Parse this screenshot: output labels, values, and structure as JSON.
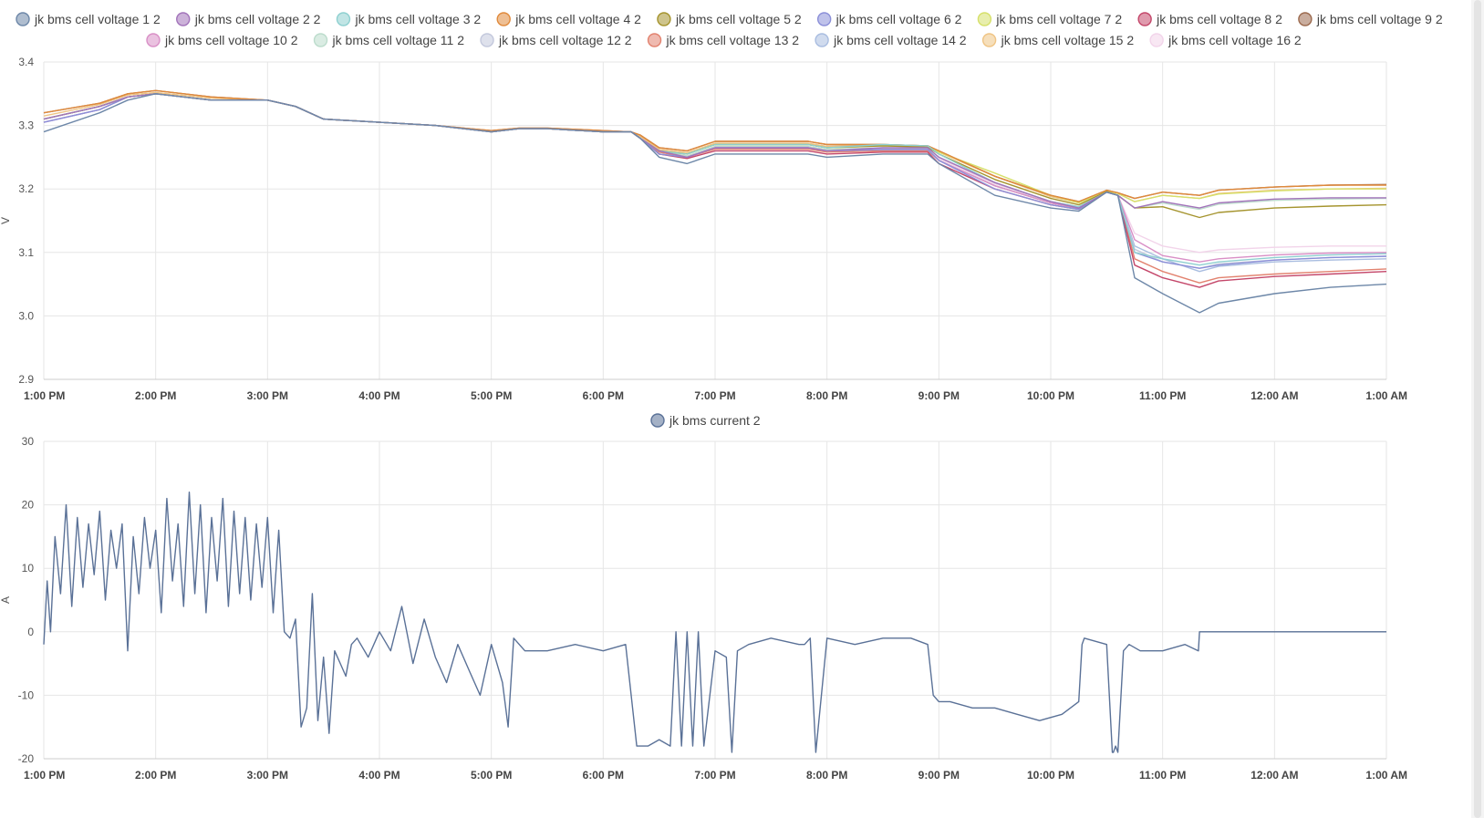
{
  "chart_data": [
    {
      "type": "line",
      "title": "",
      "xlabel": "",
      "ylabel": "V",
      "ylim": [
        2.9,
        3.4
      ],
      "yticks": [
        "2.9",
        "3.0",
        "3.1",
        "3.2",
        "3.3",
        "3.4"
      ],
      "xlim": [
        13,
        25
      ],
      "xticks": [
        "1:00 PM",
        "2:00 PM",
        "3:00 PM",
        "4:00 PM",
        "5:00 PM",
        "6:00 PM",
        "7:00 PM",
        "8:00 PM",
        "9:00 PM",
        "10:00 PM",
        "11:00 PM",
        "12:00 AM",
        "1:00 AM"
      ],
      "grid": true,
      "legend_position": "top",
      "x": [
        13.0,
        13.5,
        13.75,
        14.0,
        14.5,
        15.0,
        15.25,
        15.5,
        16.0,
        16.5,
        17.0,
        17.25,
        17.5,
        18.0,
        18.25,
        18.33,
        18.5,
        18.75,
        19.0,
        19.25,
        19.5,
        19.83,
        20.0,
        20.5,
        20.9,
        21.0,
        21.5,
        22.0,
        22.25,
        22.5,
        22.6,
        22.75,
        23.0,
        23.33,
        23.5,
        24.0,
        24.5,
        25.0
      ],
      "series": [
        {
          "name": "jk bms cell voltage 1 2",
          "color": "#6d87a8",
          "values": [
            3.29,
            3.32,
            3.34,
            3.35,
            3.34,
            3.34,
            3.33,
            3.31,
            3.305,
            3.3,
            3.29,
            3.295,
            3.295,
            3.29,
            3.29,
            3.28,
            3.25,
            3.24,
            3.255,
            3.255,
            3.255,
            3.255,
            3.25,
            3.255,
            3.255,
            3.24,
            3.19,
            3.17,
            3.165,
            3.195,
            3.19,
            3.06,
            3.035,
            3.005,
            3.02,
            3.035,
            3.045,
            3.05
          ]
        },
        {
          "name": "jk bms cell voltage 2 2",
          "color": "#a273ba",
          "values": [
            3.31,
            3.33,
            3.345,
            3.35,
            3.34,
            3.34,
            3.33,
            3.31,
            3.305,
            3.3,
            3.29,
            3.295,
            3.295,
            3.29,
            3.29,
            3.28,
            3.26,
            3.25,
            3.265,
            3.265,
            3.265,
            3.265,
            3.26,
            3.265,
            3.265,
            3.25,
            3.21,
            3.18,
            3.17,
            3.195,
            3.19,
            3.17,
            3.18,
            3.17,
            3.178,
            3.184,
            3.186,
            3.186
          ]
        },
        {
          "name": "jk bms cell voltage 3 2",
          "color": "#8ed0d0",
          "values": [
            3.31,
            3.33,
            3.345,
            3.35,
            3.34,
            3.34,
            3.33,
            3.31,
            3.305,
            3.3,
            3.29,
            3.295,
            3.295,
            3.29,
            3.29,
            3.28,
            3.26,
            3.255,
            3.27,
            3.27,
            3.27,
            3.27,
            3.265,
            3.27,
            3.268,
            3.255,
            3.21,
            3.18,
            3.172,
            3.195,
            3.19,
            3.1,
            3.09,
            3.08,
            3.085,
            3.092,
            3.096,
            3.098
          ]
        },
        {
          "name": "jk bms cell voltage 4 2",
          "color": "#e08a3c",
          "values": [
            3.32,
            3.335,
            3.35,
            3.355,
            3.345,
            3.34,
            3.33,
            3.31,
            3.305,
            3.3,
            3.292,
            3.296,
            3.296,
            3.292,
            3.29,
            3.285,
            3.265,
            3.26,
            3.275,
            3.275,
            3.275,
            3.275,
            3.27,
            3.27,
            3.268,
            3.26,
            3.22,
            3.19,
            3.18,
            3.198,
            3.194,
            3.185,
            3.195,
            3.19,
            3.198,
            3.203,
            3.206,
            3.206
          ]
        },
        {
          "name": "jk bms cell voltage 5 2",
          "color": "#a5942e",
          "values": [
            3.31,
            3.33,
            3.345,
            3.35,
            3.34,
            3.34,
            3.33,
            3.31,
            3.305,
            3.3,
            3.29,
            3.295,
            3.295,
            3.29,
            3.29,
            3.28,
            3.26,
            3.255,
            3.27,
            3.27,
            3.27,
            3.27,
            3.265,
            3.268,
            3.266,
            3.255,
            3.215,
            3.185,
            3.175,
            3.196,
            3.19,
            3.17,
            3.172,
            3.155,
            3.163,
            3.17,
            3.173,
            3.175
          ]
        },
        {
          "name": "jk bms cell voltage 6 2",
          "color": "#8b8fd8",
          "values": [
            3.305,
            3.325,
            3.345,
            3.35,
            3.34,
            3.34,
            3.33,
            3.31,
            3.305,
            3.3,
            3.29,
            3.295,
            3.295,
            3.29,
            3.29,
            3.28,
            3.255,
            3.25,
            3.265,
            3.265,
            3.265,
            3.265,
            3.26,
            3.262,
            3.262,
            3.245,
            3.2,
            3.175,
            3.168,
            3.195,
            3.19,
            3.1,
            3.085,
            3.075,
            3.08,
            3.088,
            3.092,
            3.094
          ]
        },
        {
          "name": "jk bms cell voltage 7 2",
          "color": "#d6e06a",
          "values": [
            3.31,
            3.33,
            3.345,
            3.35,
            3.34,
            3.34,
            3.33,
            3.31,
            3.305,
            3.3,
            3.29,
            3.295,
            3.295,
            3.29,
            3.29,
            3.28,
            3.26,
            3.255,
            3.27,
            3.27,
            3.27,
            3.27,
            3.265,
            3.268,
            3.266,
            3.258,
            3.225,
            3.19,
            3.178,
            3.197,
            3.193,
            3.18,
            3.19,
            3.185,
            3.192,
            3.197,
            3.2,
            3.2
          ]
        },
        {
          "name": "jk bms cell voltage 8 2",
          "color": "#c4476a",
          "values": [
            3.31,
            3.33,
            3.345,
            3.35,
            3.34,
            3.34,
            3.33,
            3.31,
            3.305,
            3.3,
            3.29,
            3.295,
            3.295,
            3.29,
            3.29,
            3.28,
            3.255,
            3.248,
            3.26,
            3.26,
            3.26,
            3.26,
            3.255,
            3.258,
            3.258,
            3.24,
            3.2,
            3.175,
            3.168,
            3.195,
            3.19,
            3.08,
            3.06,
            3.045,
            3.055,
            3.062,
            3.066,
            3.07
          ]
        },
        {
          "name": "jk bms cell voltage 9 2",
          "color": "#9c6a4e",
          "values": [
            3.32,
            3.335,
            3.35,
            3.355,
            3.345,
            3.34,
            3.33,
            3.31,
            3.305,
            3.3,
            3.292,
            3.296,
            3.296,
            3.292,
            3.29,
            3.285,
            3.265,
            3.26,
            3.275,
            3.275,
            3.275,
            3.275,
            3.27,
            3.27,
            3.268,
            3.26,
            3.22,
            3.19,
            3.18,
            3.198,
            3.194,
            3.185,
            3.195,
            3.19,
            3.198,
            3.203,
            3.206,
            3.207
          ]
        },
        {
          "name": "jk bms cell voltage 10 2",
          "color": "#d98fc6",
          "values": [
            3.305,
            3.325,
            3.345,
            3.35,
            3.34,
            3.34,
            3.33,
            3.31,
            3.305,
            3.3,
            3.29,
            3.295,
            3.295,
            3.29,
            3.29,
            3.28,
            3.255,
            3.25,
            3.265,
            3.265,
            3.265,
            3.265,
            3.26,
            3.262,
            3.262,
            3.245,
            3.205,
            3.178,
            3.17,
            3.195,
            3.19,
            3.12,
            3.095,
            3.085,
            3.09,
            3.096,
            3.099,
            3.1
          ]
        },
        {
          "name": "jk bms cell voltage 11 2",
          "color": "#bcdccc",
          "values": [
            3.31,
            3.33,
            3.345,
            3.35,
            3.34,
            3.34,
            3.33,
            3.31,
            3.305,
            3.3,
            3.29,
            3.295,
            3.295,
            3.29,
            3.29,
            3.28,
            3.26,
            3.252,
            3.267,
            3.267,
            3.267,
            3.267,
            3.262,
            3.265,
            3.264,
            3.25,
            3.21,
            3.18,
            3.172,
            3.196,
            3.19,
            3.17,
            3.178,
            3.168,
            3.176,
            3.182,
            3.184,
            3.185
          ]
        },
        {
          "name": "jk bms cell voltage 12 2",
          "color": "#c3c8dc",
          "values": [
            3.305,
            3.325,
            3.345,
            3.35,
            3.34,
            3.34,
            3.33,
            3.31,
            3.305,
            3.3,
            3.29,
            3.295,
            3.295,
            3.29,
            3.29,
            3.28,
            3.255,
            3.25,
            3.265,
            3.265,
            3.265,
            3.265,
            3.26,
            3.262,
            3.262,
            3.245,
            3.205,
            3.178,
            3.17,
            3.195,
            3.19,
            3.105,
            3.085,
            3.075,
            3.082,
            3.088,
            3.092,
            3.094
          ]
        },
        {
          "name": "jk bms cell voltage 13 2",
          "color": "#e2826f",
          "values": [
            3.31,
            3.33,
            3.345,
            3.35,
            3.34,
            3.34,
            3.33,
            3.31,
            3.305,
            3.3,
            3.29,
            3.295,
            3.295,
            3.29,
            3.29,
            3.28,
            3.258,
            3.25,
            3.263,
            3.263,
            3.263,
            3.263,
            3.258,
            3.26,
            3.26,
            3.245,
            3.205,
            3.178,
            3.17,
            3.195,
            3.19,
            3.09,
            3.07,
            3.052,
            3.06,
            3.066,
            3.07,
            3.074
          ]
        },
        {
          "name": "jk bms cell voltage 14 2",
          "color": "#a9bde0",
          "values": [
            3.305,
            3.325,
            3.345,
            3.35,
            3.34,
            3.34,
            3.33,
            3.31,
            3.305,
            3.3,
            3.29,
            3.295,
            3.295,
            3.29,
            3.29,
            3.28,
            3.255,
            3.25,
            3.265,
            3.265,
            3.265,
            3.265,
            3.26,
            3.262,
            3.262,
            3.245,
            3.205,
            3.178,
            3.17,
            3.195,
            3.19,
            3.11,
            3.09,
            3.07,
            3.078,
            3.085,
            3.088,
            3.09
          ]
        },
        {
          "name": "jk bms cell voltage 15 2",
          "color": "#efc484",
          "values": [
            3.315,
            3.333,
            3.348,
            3.352,
            3.343,
            3.34,
            3.33,
            3.31,
            3.305,
            3.3,
            3.291,
            3.295,
            3.295,
            3.291,
            3.29,
            3.283,
            3.262,
            3.257,
            3.272,
            3.272,
            3.272,
            3.272,
            3.267,
            3.269,
            3.267,
            3.258,
            3.22,
            3.188,
            3.178,
            3.197,
            3.193,
            3.18,
            3.19,
            3.185,
            3.193,
            3.198,
            3.2,
            3.201
          ]
        },
        {
          "name": "jk bms cell voltage 16 2",
          "color": "#f2d4ea",
          "values": [
            3.31,
            3.33,
            3.345,
            3.35,
            3.34,
            3.34,
            3.33,
            3.31,
            3.305,
            3.3,
            3.29,
            3.295,
            3.295,
            3.29,
            3.29,
            3.28,
            3.258,
            3.252,
            3.266,
            3.266,
            3.266,
            3.266,
            3.261,
            3.263,
            3.262,
            3.248,
            3.208,
            3.18,
            3.172,
            3.196,
            3.19,
            3.13,
            3.11,
            3.1,
            3.104,
            3.108,
            3.11,
            3.11
          ]
        }
      ]
    },
    {
      "type": "line",
      "title": "",
      "xlabel": "",
      "ylabel": "A",
      "ylim": [
        -20,
        30
      ],
      "yticks": [
        "-20",
        "-10",
        "0",
        "10",
        "20",
        "30"
      ],
      "xlim": [
        13,
        25
      ],
      "xticks": [
        "1:00 PM",
        "2:00 PM",
        "3:00 PM",
        "4:00 PM",
        "5:00 PM",
        "6:00 PM",
        "7:00 PM",
        "8:00 PM",
        "9:00 PM",
        "10:00 PM",
        "11:00 PM",
        "12:00 AM",
        "1:00 AM"
      ],
      "grid": true,
      "legend_position": "top",
      "series": [
        {
          "name": "jk bms current 2",
          "color": "#5a7197",
          "x": [
            13.0,
            13.03,
            13.06,
            13.1,
            13.15,
            13.2,
            13.25,
            13.3,
            13.35,
            13.4,
            13.45,
            13.5,
            13.55,
            13.6,
            13.65,
            13.7,
            13.75,
            13.8,
            13.85,
            13.9,
            13.95,
            14.0,
            14.05,
            14.1,
            14.15,
            14.2,
            14.25,
            14.3,
            14.35,
            14.4,
            14.45,
            14.5,
            14.55,
            14.6,
            14.65,
            14.7,
            14.75,
            14.8,
            14.85,
            14.9,
            14.95,
            15.0,
            15.05,
            15.1,
            15.15,
            15.2,
            15.25,
            15.3,
            15.35,
            15.4,
            15.45,
            15.5,
            15.55,
            15.6,
            15.65,
            15.7,
            15.75,
            15.8,
            15.9,
            16.0,
            16.1,
            16.2,
            16.3,
            16.4,
            16.5,
            16.6,
            16.7,
            16.8,
            16.9,
            17.0,
            17.05,
            17.1,
            17.15,
            17.2,
            17.3,
            17.5,
            17.75,
            18.0,
            18.2,
            18.3,
            18.35,
            18.4,
            18.5,
            18.6,
            18.65,
            18.7,
            18.75,
            18.8,
            18.85,
            18.9,
            19.0,
            19.1,
            19.15,
            19.2,
            19.3,
            19.5,
            19.75,
            19.8,
            19.85,
            19.9,
            20.0,
            20.25,
            20.5,
            20.75,
            20.9,
            20.95,
            21.0,
            21.1,
            21.3,
            21.5,
            21.7,
            21.9,
            22.1,
            22.25,
            22.28,
            22.3,
            22.5,
            22.55,
            22.56,
            22.58,
            22.6,
            22.65,
            22.7,
            22.8,
            23.0,
            23.2,
            23.32,
            23.33,
            23.5,
            24.0,
            24.5,
            25.0
          ],
          "values": [
            -2,
            8,
            0,
            15,
            6,
            20,
            4,
            18,
            7,
            17,
            9,
            19,
            5,
            16,
            10,
            17,
            -3,
            15,
            6,
            18,
            10,
            16,
            3,
            21,
            8,
            17,
            4,
            22,
            6,
            20,
            3,
            18,
            8,
            21,
            4,
            19,
            6,
            18,
            5,
            17,
            7,
            18,
            3,
            16,
            0,
            -1,
            2,
            -15,
            -12,
            6,
            -14,
            -4,
            -16,
            -3,
            -5,
            -7,
            -2,
            -1,
            -4,
            0,
            -3,
            4,
            -5,
            2,
            -4,
            -8,
            -2,
            -6,
            -10,
            -2,
            -5,
            -8,
            -15,
            -1,
            -3,
            -3,
            -2,
            -3,
            -2,
            -18,
            -18,
            -18,
            -17,
            -18,
            0,
            -18,
            0,
            -18,
            0,
            -18,
            -3,
            -4,
            -19,
            -3,
            -2,
            -1,
            -2,
            -2,
            -1,
            -19,
            -1,
            -2,
            -1,
            -1,
            -2,
            -10,
            -11,
            -11,
            -12,
            -12,
            -13,
            -14,
            -13,
            -11,
            -2,
            -1,
            -2,
            -19,
            -19,
            -18,
            -19,
            -3,
            -2,
            -3,
            -3,
            -2,
            -3,
            0,
            0,
            0,
            0,
            0
          ]
        }
      ]
    }
  ]
}
